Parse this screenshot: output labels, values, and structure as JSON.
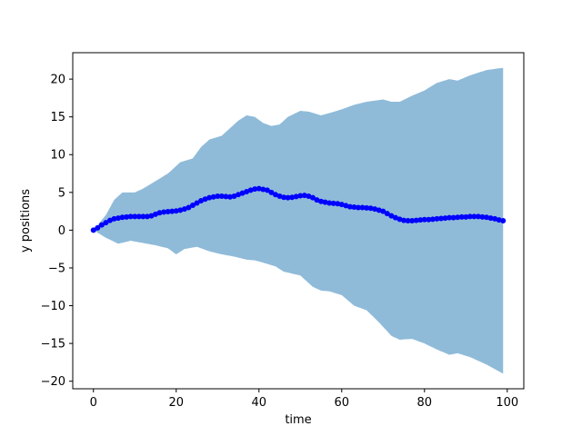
{
  "chart_data": {
    "type": "line",
    "title": "",
    "xlabel": "time",
    "ylabel": "y positions",
    "xlim": [
      -5,
      104
    ],
    "ylim": [
      -21,
      23.5
    ],
    "xticks": [
      0,
      20,
      40,
      60,
      80,
      100
    ],
    "yticks": [
      -20,
      -15,
      -10,
      -5,
      0,
      5,
      10,
      15,
      20
    ],
    "grid": false,
    "colors": {
      "band": "#8fbbd9",
      "line": "#0000ff",
      "axes": "#000000"
    },
    "upper_anchors": [
      [
        0,
        0
      ],
      [
        3,
        2
      ],
      [
        5,
        4
      ],
      [
        7,
        5
      ],
      [
        10,
        5
      ],
      [
        12,
        5.5
      ],
      [
        15,
        6.5
      ],
      [
        18,
        7.5
      ],
      [
        21,
        9
      ],
      [
        24,
        9.5
      ],
      [
        26,
        11
      ],
      [
        28,
        12
      ],
      [
        31,
        12.5
      ],
      [
        33,
        13.5
      ],
      [
        35,
        14.5
      ],
      [
        37,
        15.2
      ],
      [
        39,
        15
      ],
      [
        41,
        14.2
      ],
      [
        43,
        13.8
      ],
      [
        45,
        14
      ],
      [
        47,
        15
      ],
      [
        50,
        15.8
      ],
      [
        52,
        15.7
      ],
      [
        55,
        15.2
      ],
      [
        57,
        15.5
      ],
      [
        60,
        16
      ],
      [
        63,
        16.6
      ],
      [
        66,
        17
      ],
      [
        70,
        17.3
      ],
      [
        72,
        17
      ],
      [
        74,
        17
      ],
      [
        77,
        17.8
      ],
      [
        80,
        18.5
      ],
      [
        83,
        19.5
      ],
      [
        86,
        20
      ],
      [
        88,
        19.8
      ],
      [
        91,
        20.5
      ],
      [
        95,
        21.2
      ],
      [
        99,
        21.5
      ]
    ],
    "lower_anchors": [
      [
        0,
        0
      ],
      [
        3,
        -1
      ],
      [
        6,
        -1.8
      ],
      [
        9,
        -1.4
      ],
      [
        12,
        -1.7
      ],
      [
        15,
        -2
      ],
      [
        18,
        -2.4
      ],
      [
        20,
        -3.2
      ],
      [
        22,
        -2.5
      ],
      [
        25,
        -2.2
      ],
      [
        28,
        -2.8
      ],
      [
        31,
        -3.2
      ],
      [
        34,
        -3.5
      ],
      [
        37,
        -3.9
      ],
      [
        39,
        -4
      ],
      [
        41,
        -4.3
      ],
      [
        44,
        -4.8
      ],
      [
        46,
        -5.5
      ],
      [
        50,
        -6
      ],
      [
        53,
        -7.5
      ],
      [
        55,
        -8
      ],
      [
        57,
        -8.1
      ],
      [
        60,
        -8.6
      ],
      [
        63,
        -10
      ],
      [
        66,
        -10.6
      ],
      [
        69,
        -12.2
      ],
      [
        72,
        -14
      ],
      [
        74,
        -14.5
      ],
      [
        77,
        -14.4
      ],
      [
        80,
        -15
      ],
      [
        83,
        -15.8
      ],
      [
        86,
        -16.5
      ],
      [
        88,
        -16.3
      ],
      [
        91,
        -16.8
      ],
      [
        95,
        -17.8
      ],
      [
        99,
        -19
      ]
    ],
    "series": [
      {
        "name": "y positions",
        "x": [
          0,
          1,
          2,
          3,
          4,
          5,
          6,
          7,
          8,
          9,
          10,
          11,
          12,
          13,
          14,
          15,
          16,
          17,
          18,
          19,
          20,
          21,
          22,
          23,
          24,
          25,
          26,
          27,
          28,
          29,
          30,
          31,
          32,
          33,
          34,
          35,
          36,
          37,
          38,
          39,
          40,
          41,
          42,
          43,
          44,
          45,
          46,
          47,
          48,
          49,
          50,
          51,
          52,
          53,
          54,
          55,
          56,
          57,
          58,
          59,
          60,
          61,
          62,
          63,
          64,
          65,
          66,
          67,
          68,
          69,
          70,
          71,
          72,
          73,
          74,
          75,
          76,
          77,
          78,
          79,
          80,
          81,
          82,
          83,
          84,
          85,
          86,
          87,
          88,
          89,
          90,
          91,
          92,
          93,
          94,
          95,
          96,
          97,
          98,
          99
        ],
        "y": [
          0.0,
          0.3,
          0.7,
          1.0,
          1.3,
          1.5,
          1.6,
          1.7,
          1.75,
          1.8,
          1.8,
          1.8,
          1.8,
          1.8,
          1.9,
          2.1,
          2.3,
          2.4,
          2.45,
          2.5,
          2.55,
          2.65,
          2.8,
          3.0,
          3.3,
          3.6,
          3.9,
          4.1,
          4.3,
          4.4,
          4.5,
          4.5,
          4.45,
          4.4,
          4.5,
          4.7,
          4.9,
          5.1,
          5.3,
          5.45,
          5.5,
          5.4,
          5.3,
          5.0,
          4.7,
          4.5,
          4.35,
          4.3,
          4.35,
          4.45,
          4.55,
          4.6,
          4.5,
          4.3,
          4.0,
          3.8,
          3.7,
          3.6,
          3.55,
          3.5,
          3.4,
          3.25,
          3.1,
          3.05,
          3.0,
          3.0,
          2.95,
          2.9,
          2.8,
          2.65,
          2.5,
          2.2,
          1.9,
          1.65,
          1.45,
          1.3,
          1.25,
          1.25,
          1.3,
          1.35,
          1.4,
          1.4,
          1.45,
          1.5,
          1.55,
          1.6,
          1.65,
          1.65,
          1.7,
          1.75,
          1.75,
          1.8,
          1.8,
          1.8,
          1.75,
          1.7,
          1.6,
          1.5,
          1.35,
          1.25
        ]
      }
    ]
  }
}
